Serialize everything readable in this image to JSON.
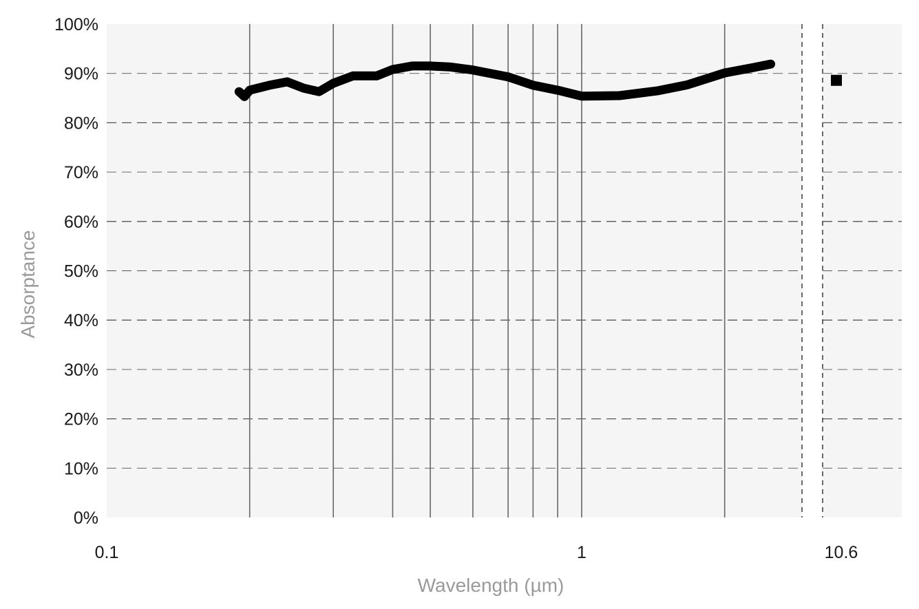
{
  "chart_data": {
    "type": "line",
    "title": "",
    "xlabel": "Wavelength (µm)",
    "ylabel": "Absorptance",
    "x_scale": "log",
    "xlim": [
      0.1,
      3
    ],
    "x_break": {
      "after": 2.9,
      "resume_at": 10.6
    },
    "ylim": [
      0,
      100
    ],
    "x_tick_labels": [
      "0.1",
      "1",
      "10.6"
    ],
    "x_ticks": [
      0.1,
      1,
      10.6
    ],
    "y_ticks": [
      0,
      10,
      20,
      30,
      40,
      50,
      60,
      70,
      80,
      90,
      100
    ],
    "y_tick_labels": [
      "0%",
      "10%",
      "20%",
      "30%",
      "40%",
      "50%",
      "60%",
      "70%",
      "80%",
      "90%",
      "100%"
    ],
    "grid": {
      "y": "dashed",
      "x_lines_at": [
        0.2,
        0.3,
        0.4,
        0.48,
        0.59,
        0.7,
        0.79,
        0.89,
        1,
        2
      ]
    },
    "legend": "none",
    "colors": {
      "series": "#000000",
      "background": "#f5f5f5",
      "grid": "#555555"
    },
    "series": [
      {
        "x": [
          0.19,
          0.195,
          0.2,
          0.22,
          0.24,
          0.26,
          0.28,
          0.3,
          0.33,
          0.37,
          0.4,
          0.44,
          0.48,
          0.53,
          0.59,
          0.7,
          0.79,
          0.89,
          1.0,
          1.2,
          1.45,
          1.67,
          2.0,
          2.3,
          2.5
        ],
        "y": [
          86.3,
          85.3,
          86.6,
          87.6,
          88.3,
          87.0,
          86.3,
          88.0,
          89.5,
          89.5,
          90.8,
          91.5,
          91.5,
          91.3,
          90.7,
          89.3,
          87.6,
          86.6,
          85.4,
          85.5,
          86.5,
          87.7,
          90.1,
          91.2,
          91.9
        ]
      },
      {
        "marker": "square",
        "x": [
          10.6
        ],
        "y": [
          88.6
        ]
      }
    ]
  }
}
